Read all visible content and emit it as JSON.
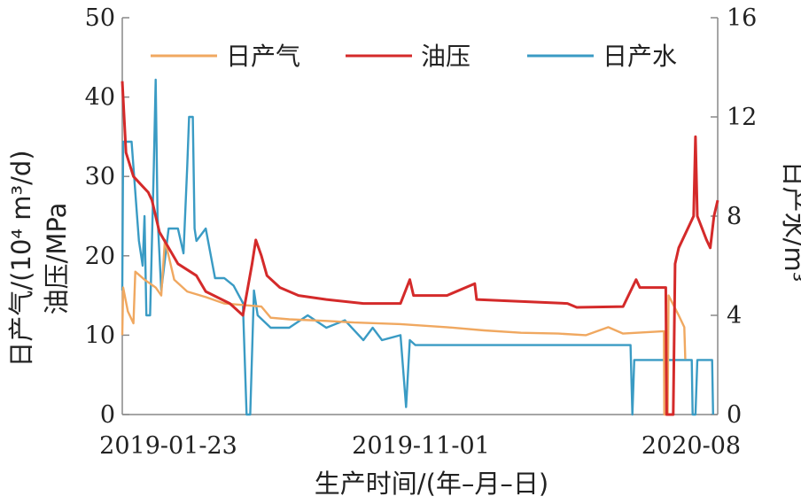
{
  "chart_data": {
    "type": "line",
    "x_tick_labels": [
      "2019-01-23",
      "2019-11-01",
      "2020-08"
    ],
    "xlabel": "生产时间/(年–月–日)",
    "ylabel_left_line1": "日产气/(10⁴ m³/d)",
    "ylabel_left_line2": "油压/MPa",
    "ylabel_right": "日产水/m³",
    "ylim_left": [
      0,
      50
    ],
    "ylim_right": [
      0,
      16
    ],
    "y_ticks_left": [
      0,
      10,
      20,
      30,
      40,
      50
    ],
    "y_ticks_right": [
      0,
      4,
      8,
      12,
      16
    ],
    "legend_position": "top",
    "grid": false,
    "colors": {
      "gas": "#f0a860",
      "pressure": "#d42a2a",
      "water": "#3a9bc4"
    },
    "series": [
      {
        "name": "日产气",
        "axis": "left",
        "points": [
          [
            0,
            10
          ],
          [
            0.5,
            16
          ],
          [
            3,
            13
          ],
          [
            6,
            11.5
          ],
          [
            7,
            18
          ],
          [
            12,
            17
          ],
          [
            18,
            16
          ],
          [
            21,
            15
          ],
          [
            23,
            22
          ],
          [
            28,
            17
          ],
          [
            35,
            15.5
          ],
          [
            45,
            14.8
          ],
          [
            55,
            14
          ],
          [
            75,
            13.6
          ],
          [
            80,
            12.2
          ],
          [
            90,
            12
          ],
          [
            110,
            11.8
          ],
          [
            125,
            11.6
          ],
          [
            150,
            11.4
          ],
          [
            175,
            11
          ],
          [
            195,
            10.6
          ],
          [
            215,
            10.3
          ],
          [
            235,
            10.2
          ],
          [
            250,
            10
          ],
          [
            262,
            11
          ],
          [
            270,
            10.2
          ],
          [
            292,
            10.5
          ],
          [
            292.2,
            0
          ],
          [
            294,
            0
          ],
          [
            294.5,
            15
          ],
          [
            300,
            12.5
          ],
          [
            303,
            11
          ],
          [
            303.5,
            7
          ]
        ]
      },
      {
        "name": "油压",
        "axis": "left",
        "points": [
          [
            0,
            42
          ],
          [
            2,
            33
          ],
          [
            6,
            30
          ],
          [
            10,
            29
          ],
          [
            14,
            28
          ],
          [
            16,
            27
          ],
          [
            20,
            23
          ],
          [
            30,
            19
          ],
          [
            40,
            17.5
          ],
          [
            45,
            15.5
          ],
          [
            58,
            14
          ],
          [
            65,
            12.5
          ],
          [
            70,
            19
          ],
          [
            72,
            22
          ],
          [
            75,
            20
          ],
          [
            78,
            17.5
          ],
          [
            85,
            16
          ],
          [
            95,
            15
          ],
          [
            110,
            14.5
          ],
          [
            130,
            14
          ],
          [
            150,
            14
          ],
          [
            155,
            17
          ],
          [
            157,
            15
          ],
          [
            175,
            15
          ],
          [
            190,
            16.5
          ],
          [
            191,
            14.5
          ],
          [
            210,
            14.3
          ],
          [
            240,
            14
          ],
          [
            245,
            13.5
          ],
          [
            270,
            13.6
          ],
          [
            277,
            17
          ],
          [
            279,
            16
          ],
          [
            293,
            16
          ],
          [
            293.5,
            0
          ],
          [
            297,
            0
          ],
          [
            298,
            19
          ],
          [
            300,
            21
          ],
          [
            306,
            24
          ],
          [
            308,
            25
          ],
          [
            309,
            35
          ],
          [
            310,
            25
          ],
          [
            315,
            22
          ],
          [
            317,
            21
          ],
          [
            319,
            25
          ],
          [
            321,
            27
          ]
        ]
      },
      {
        "name": "日产水",
        "axis": "right",
        "points": [
          [
            0,
            5
          ],
          [
            0.5,
            11
          ],
          [
            5,
            11
          ],
          [
            8,
            8
          ],
          [
            9,
            7
          ],
          [
            11,
            6
          ],
          [
            12,
            8
          ],
          [
            13,
            4
          ],
          [
            15,
            4
          ],
          [
            17,
            10
          ],
          [
            18,
            13.5
          ],
          [
            19,
            8
          ],
          [
            21,
            5
          ],
          [
            25,
            7.5
          ],
          [
            30,
            7.5
          ],
          [
            33,
            6.5
          ],
          [
            35,
            10
          ],
          [
            36,
            12
          ],
          [
            38,
            12
          ],
          [
            39,
            7.5
          ],
          [
            40,
            7
          ],
          [
            45,
            7.5
          ],
          [
            50,
            5.5
          ],
          [
            55,
            5.5
          ],
          [
            60,
            5.2
          ],
          [
            65,
            4.5
          ],
          [
            67,
            0
          ],
          [
            69,
            0
          ],
          [
            71,
            5
          ],
          [
            73,
            4
          ],
          [
            80,
            3.5
          ],
          [
            90,
            3.5
          ],
          [
            100,
            4
          ],
          [
            110,
            3.5
          ],
          [
            120,
            3.8
          ],
          [
            130,
            3
          ],
          [
            135,
            3.5
          ],
          [
            140,
            3
          ],
          [
            150,
            3.2
          ],
          [
            153,
            0.3
          ],
          [
            155,
            3
          ],
          [
            158,
            2.8
          ],
          [
            175,
            2.8
          ],
          [
            200,
            2.8
          ],
          [
            220,
            2.8
          ],
          [
            240,
            2.8
          ],
          [
            260,
            2.8
          ],
          [
            274,
            2.8
          ],
          [
            275,
            0
          ],
          [
            276,
            2.2
          ],
          [
            300,
            2.2
          ],
          [
            307,
            2.2
          ],
          [
            307.5,
            0
          ],
          [
            309,
            0
          ],
          [
            310,
            2.2
          ],
          [
            318,
            2.2
          ],
          [
            318.5,
            0
          ]
        ]
      }
    ]
  }
}
